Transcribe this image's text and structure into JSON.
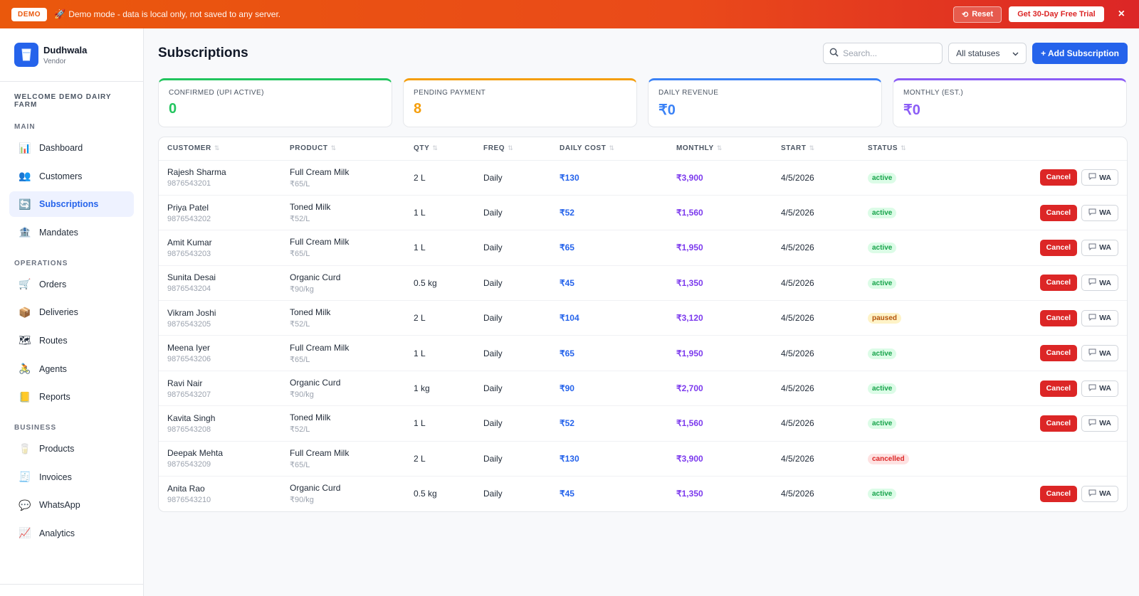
{
  "banner": {
    "badge": "DEMO",
    "message": "Demo mode - data is local only, not saved to any server.",
    "reset_label": "Reset",
    "trial_label": "Get 30-Day Free Trial",
    "close_label": "×"
  },
  "sidebar": {
    "brand_name": "Dudhwala",
    "brand_role": "Vendor",
    "welcome": "WELCOME DEMO DAIRY FARM",
    "sections": {
      "main": "MAIN",
      "operations": "OPERATIONS",
      "business": "BUSINESS"
    },
    "items": {
      "dashboard": "Dashboard",
      "customers": "Customers",
      "subscriptions": "Subscriptions",
      "mandates": "Mandates",
      "orders": "Orders",
      "deliveries": "Deliveries",
      "routes": "Routes",
      "agents": "Agents",
      "reports": "Reports",
      "products": "Products",
      "invoices": "Invoices",
      "whatsapp": "WhatsApp",
      "analytics": "Analytics"
    }
  },
  "header": {
    "title": "Subscriptions",
    "search_placeholder": "Search...",
    "status_filter": "All statuses",
    "add_label": "+ Add Subscription"
  },
  "cards": [
    {
      "label": "CONFIRMED (UPI ACTIVE)",
      "value": "0",
      "color": "#22c55e"
    },
    {
      "label": "PENDING PAYMENT",
      "value": "8",
      "color": "#f59e0b"
    },
    {
      "label": "DAILY REVENUE",
      "value": "₹0",
      "color": "#3b82f6"
    },
    {
      "label": "MONTHLY (EST.)",
      "value": "₹0",
      "color": "#8b5cf6"
    }
  ],
  "table": {
    "headers": [
      "CUSTOMER",
      "PRODUCT",
      "QTY",
      "FREQ",
      "DAILY COST",
      "MONTHLY",
      "START",
      "STATUS"
    ],
    "cancel_label": "Cancel",
    "wa_label": "WA",
    "rows": [
      {
        "name": "Rajesh Sharma",
        "phone": "9876543201",
        "product": "Full Cream Milk",
        "price": "₹65/L",
        "qty": "2 L",
        "freq": "Daily",
        "daily": "₹130",
        "monthly": "₹3,900",
        "start": "4/5/2026",
        "status": "active"
      },
      {
        "name": "Priya Patel",
        "phone": "9876543202",
        "product": "Toned Milk",
        "price": "₹52/L",
        "qty": "1 L",
        "freq": "Daily",
        "daily": "₹52",
        "monthly": "₹1,560",
        "start": "4/5/2026",
        "status": "active"
      },
      {
        "name": "Amit Kumar",
        "phone": "9876543203",
        "product": "Full Cream Milk",
        "price": "₹65/L",
        "qty": "1 L",
        "freq": "Daily",
        "daily": "₹65",
        "monthly": "₹1,950",
        "start": "4/5/2026",
        "status": "active"
      },
      {
        "name": "Sunita Desai",
        "phone": "9876543204",
        "product": "Organic Curd",
        "price": "₹90/kg",
        "qty": "0.5 kg",
        "freq": "Daily",
        "daily": "₹45",
        "monthly": "₹1,350",
        "start": "4/5/2026",
        "status": "active"
      },
      {
        "name": "Vikram Joshi",
        "phone": "9876543205",
        "product": "Toned Milk",
        "price": "₹52/L",
        "qty": "2 L",
        "freq": "Daily",
        "daily": "₹104",
        "monthly": "₹3,120",
        "start": "4/5/2026",
        "status": "paused"
      },
      {
        "name": "Meena Iyer",
        "phone": "9876543206",
        "product": "Full Cream Milk",
        "price": "₹65/L",
        "qty": "1 L",
        "freq": "Daily",
        "daily": "₹65",
        "monthly": "₹1,950",
        "start": "4/5/2026",
        "status": "active"
      },
      {
        "name": "Ravi Nair",
        "phone": "9876543207",
        "product": "Organic Curd",
        "price": "₹90/kg",
        "qty": "1 kg",
        "freq": "Daily",
        "daily": "₹90",
        "monthly": "₹2,700",
        "start": "4/5/2026",
        "status": "active"
      },
      {
        "name": "Kavita Singh",
        "phone": "9876543208",
        "product": "Toned Milk",
        "price": "₹52/L",
        "qty": "1 L",
        "freq": "Daily",
        "daily": "₹52",
        "monthly": "₹1,560",
        "start": "4/5/2026",
        "status": "active"
      },
      {
        "name": "Deepak Mehta",
        "phone": "9876543209",
        "product": "Full Cream Milk",
        "price": "₹65/L",
        "qty": "2 L",
        "freq": "Daily",
        "daily": "₹130",
        "monthly": "₹3,900",
        "start": "4/5/2026",
        "status": "cancelled"
      },
      {
        "name": "Anita Rao",
        "phone": "9876543210",
        "product": "Organic Curd",
        "price": "₹90/kg",
        "qty": "0.5 kg",
        "freq": "Daily",
        "daily": "₹45",
        "monthly": "₹1,350",
        "start": "4/5/2026",
        "status": "active"
      }
    ]
  },
  "icons": {
    "dashboard": "bar-chart-icon",
    "customers": "users-icon",
    "subscriptions": "refresh-icon",
    "mandates": "bank-icon",
    "orders": "cart-icon",
    "deliveries": "package-icon",
    "routes": "map-icon",
    "agents": "bicycle-icon",
    "reports": "ledger-icon",
    "products": "cup-icon",
    "invoices": "receipt-icon",
    "whatsapp": "chat-bubble-icon",
    "analytics": "trend-chart-icon"
  }
}
